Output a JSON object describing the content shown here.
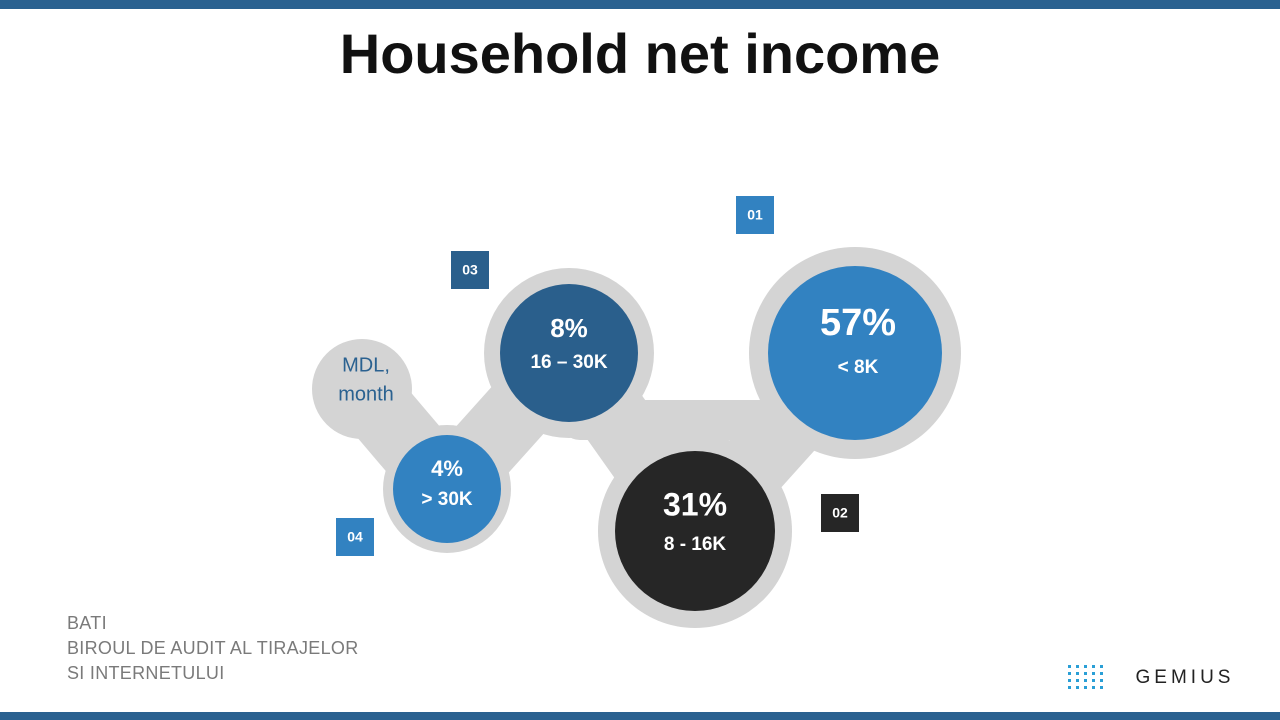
{
  "header": {
    "title": "Household net income"
  },
  "unit_label": [
    "MDL,",
    "month"
  ],
  "bubbles": [
    {
      "number": "01",
      "value": "57%",
      "range": "< 8K"
    },
    {
      "number": "02",
      "value": "31%",
      "range": "8 - 16K"
    },
    {
      "number": "03",
      "value": "8%",
      "range": "16 – 30K"
    },
    {
      "number": "04",
      "value": "4%",
      "range": "> 30K"
    }
  ],
  "footer": {
    "source": [
      "BATI",
      "BIROUL DE AUDIT AL TIRAJELOR",
      "SI INTERNETULUI"
    ],
    "logo": "GEMIUS"
  }
}
